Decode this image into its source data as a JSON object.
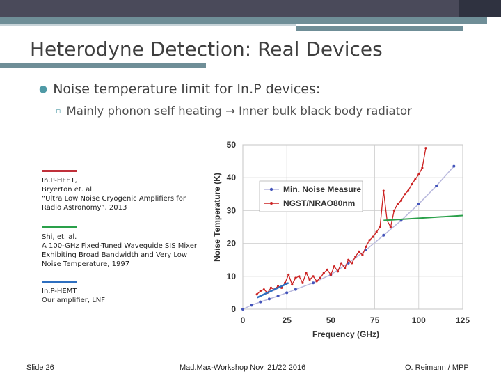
{
  "slide": {
    "title": "Heterodyne Detection: Real Devices",
    "bullet1": "Noise temperature limit for In.P devices:",
    "bullet2": "Mainly phonon self heating → Inner bulk black body radiator"
  },
  "legend_notes": [
    {
      "color": "#c0303a",
      "lines": [
        "In.P-HFET,",
        "Bryerton et. al.",
        "“Ultra Low Noise Cryogenic Amplifiers for",
        "Radio Astronomy”, 2013"
      ]
    },
    {
      "color": "#2aa04a",
      "lines": [
        "Shi, et. al.",
        "A 100-GHz Fixed-Tuned Waveguide SIS Mixer",
        "Exhibiting Broad Bandwidth and Very Low",
        "Noise Temperature, 1997"
      ]
    },
    {
      "color": "#2e6fc0",
      "lines": [
        "In.P-HEMT",
        "Our amplifier, LNF"
      ]
    }
  ],
  "footer": {
    "slide_number": "Slide 26",
    "event": "Mad.Max-Workshop Nov. 21/22 2016",
    "author": "O. Reimann / MPP"
  },
  "chart_data": {
    "type": "line",
    "xlabel": "Frequency (GHz)",
    "ylabel": "Noise Temperature (K)",
    "xlim": [
      0,
      125
    ],
    "ylim": [
      0,
      50
    ],
    "xticks": [
      "0",
      "25",
      "50",
      "75",
      "100",
      "125"
    ],
    "yticks": [
      "0",
      "10",
      "20",
      "30",
      "40",
      "50"
    ],
    "legend_position": "top-left",
    "grid": true,
    "series": [
      {
        "name": "Min. Noise Measure",
        "color": "#4455bb",
        "x": [
          0,
          5,
          10,
          15,
          20,
          25,
          30,
          40,
          50,
          60,
          70,
          80,
          90,
          100,
          110,
          120
        ],
        "y": [
          0,
          1.2,
          2.2,
          3.1,
          4.0,
          5.0,
          6.0,
          8.0,
          10.5,
          14.0,
          18.0,
          22.5,
          27.0,
          32.0,
          37.5,
          43.5
        ]
      },
      {
        "name": "NGST/NRAO80nm",
        "color": "#cc2222",
        "x": [
          8,
          10,
          12,
          14,
          16,
          18,
          20,
          22,
          24,
          26,
          28,
          30,
          32,
          34,
          36,
          38,
          40,
          42,
          44,
          46,
          48,
          50,
          52,
          54,
          56,
          58,
          60,
          62,
          64,
          66,
          68,
          70,
          72,
          74,
          76,
          78,
          80,
          82,
          84,
          86,
          88,
          90,
          92,
          94,
          96,
          98,
          100,
          102,
          104
        ],
        "y": [
          4.5,
          5.5,
          6.0,
          5.0,
          6.5,
          6.0,
          7.0,
          6.5,
          8.0,
          10.5,
          7.5,
          9.5,
          10.0,
          8.0,
          11.0,
          9.0,
          10.0,
          8.5,
          9.5,
          11.0,
          12.0,
          10.5,
          13.0,
          11.5,
          14.0,
          12.5,
          15.0,
          14.0,
          16.0,
          17.5,
          16.5,
          19.0,
          21.0,
          22.0,
          23.5,
          25.0,
          36.0,
          27.0,
          25.0,
          30.0,
          32.0,
          33.0,
          35.0,
          36.0,
          38.0,
          39.5,
          41.0,
          43.0,
          49.0
        ]
      },
      {
        "name": "",
        "color": "#2aa04a",
        "x": [
          80,
          125
        ],
        "y": [
          27.0,
          28.5
        ]
      },
      {
        "name": "",
        "color": "#2e6fc0",
        "x": [
          8,
          26
        ],
        "y": [
          3.5,
          8.0
        ]
      }
    ]
  }
}
